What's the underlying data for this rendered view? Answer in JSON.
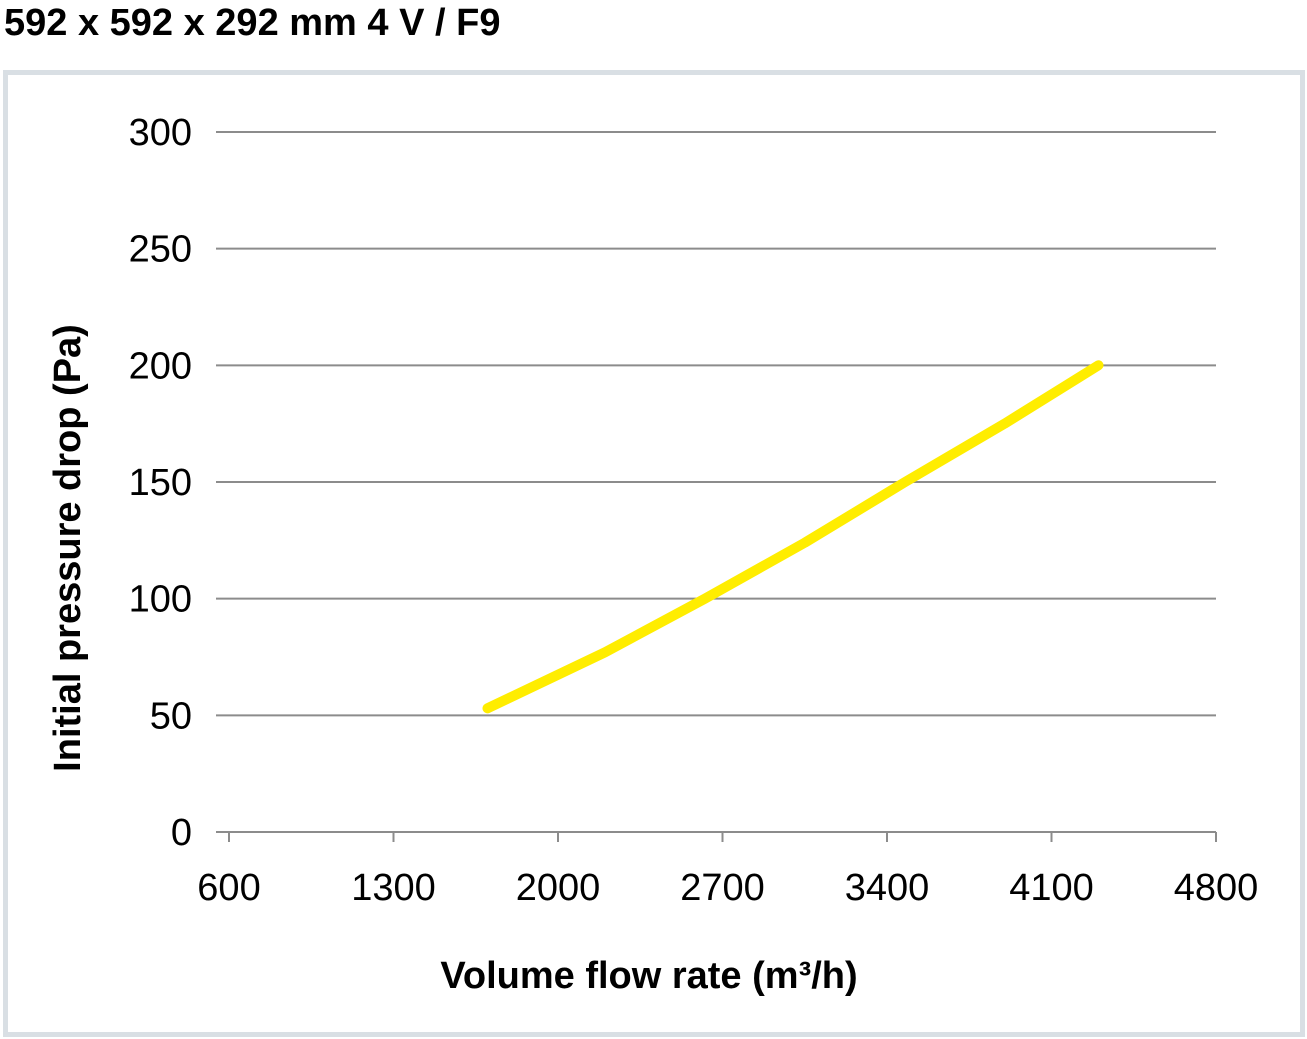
{
  "title": "592 x 592 x 292 mm 4 V / F9",
  "chart_data": {
    "type": "line",
    "title": "592 x 592 x 292 mm 4 V / F9",
    "xlabel": "Volume flow rate (m³/h)",
    "ylabel": "Initial pressure drop (Pa)",
    "xlim": [
      600,
      4800
    ],
    "ylim": [
      0,
      300
    ],
    "xticks": [
      "600",
      "1300",
      "2000",
      "2700",
      "3400",
      "4100",
      "4800"
    ],
    "yticks": [
      "0",
      "50",
      "100",
      "150",
      "200",
      "250",
      "300"
    ],
    "grid": "horizontal",
    "series": [
      {
        "name": "4 V / F9",
        "color": "#ffed00",
        "x": [
          1700,
          2200,
          2625,
          3050,
          3477,
          3900,
          4300
        ],
        "y": [
          53,
          77,
          100,
          124,
          150,
          175,
          200
        ]
      }
    ]
  }
}
